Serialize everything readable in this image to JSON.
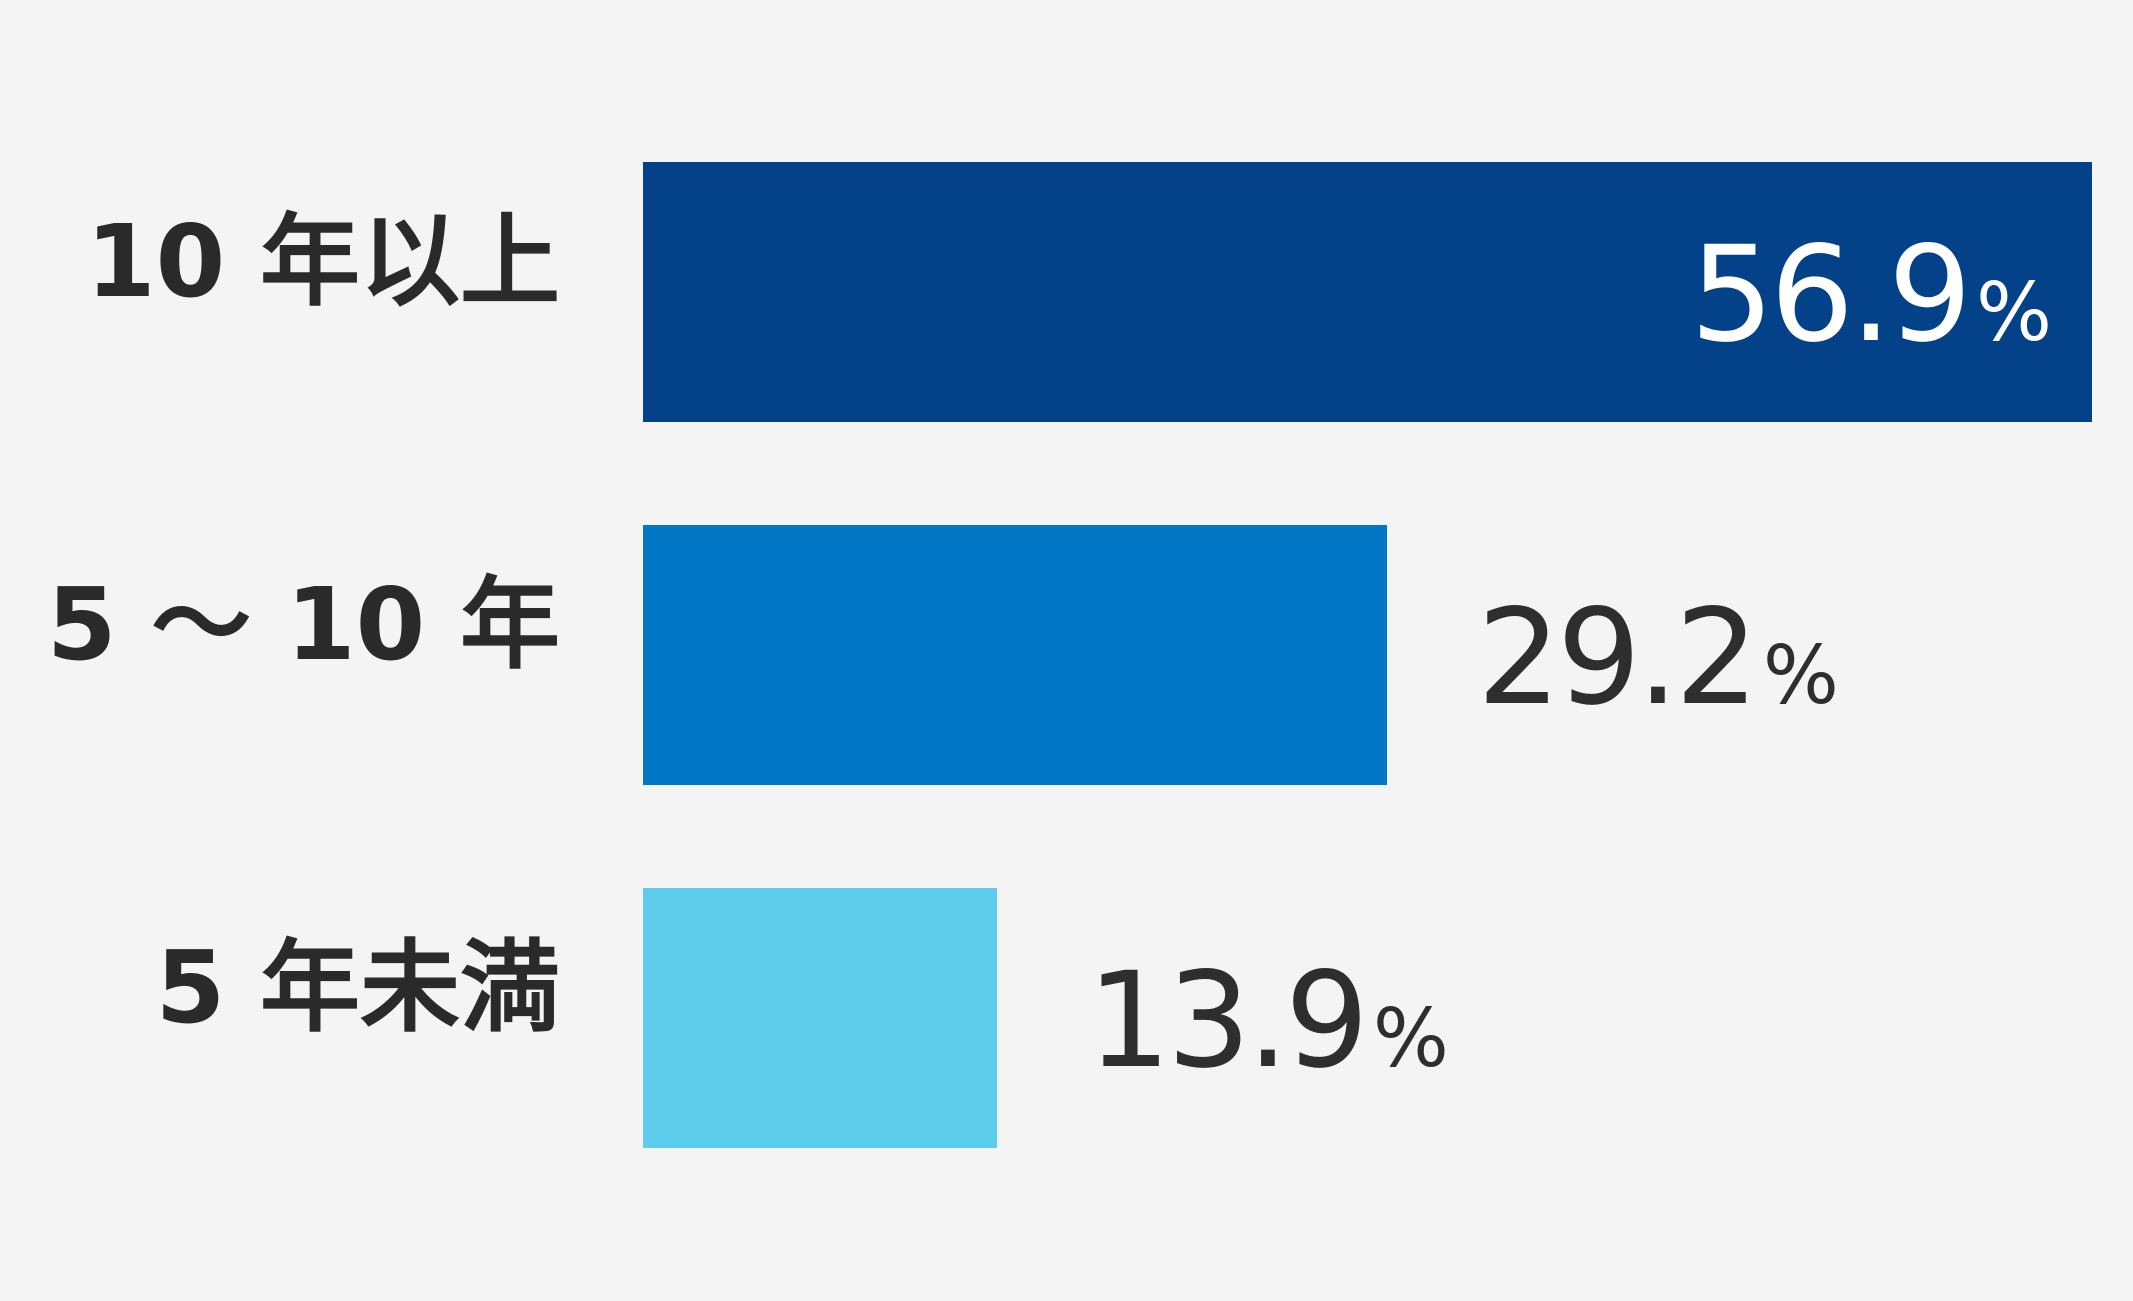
{
  "chart_data": {
    "type": "bar",
    "orientation": "horizontal",
    "categories": [
      "10 年以上",
      "5 ～ 10 年",
      "5 年未満"
    ],
    "values": [
      56.9,
      29.2,
      13.9
    ],
    "value_labels": [
      "56.9",
      "29.2",
      "13.9"
    ],
    "unit": "%",
    "colors": [
      "#034289",
      "#0277c5",
      "#5ecdeb"
    ],
    "value_label_colors": [
      "#ffffff",
      "#2e2e2e",
      "#2e2e2e"
    ],
    "value_label_inside": [
      true,
      false,
      false
    ],
    "xlim": [
      0,
      56.9
    ],
    "grid": false,
    "legend": "none"
  }
}
